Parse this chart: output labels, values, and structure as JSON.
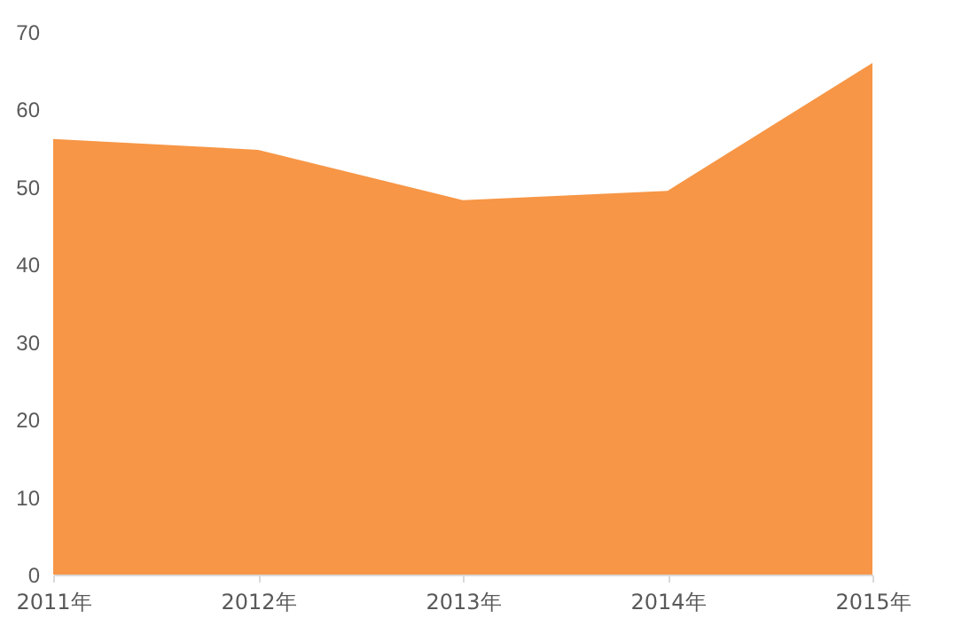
{
  "chart_data": {
    "type": "area",
    "categories": [
      "2011年",
      "2012年",
      "2013年",
      "2014年",
      "2015年"
    ],
    "series": [
      {
        "color": "#f79646",
        "values": [
          56.2,
          54.8,
          48.3,
          49.5,
          66.0
        ]
      }
    ],
    "ylim": [
      0,
      70
    ],
    "yticks": [
      0,
      10,
      20,
      30,
      40,
      50,
      60,
      70
    ],
    "grid": false
  }
}
